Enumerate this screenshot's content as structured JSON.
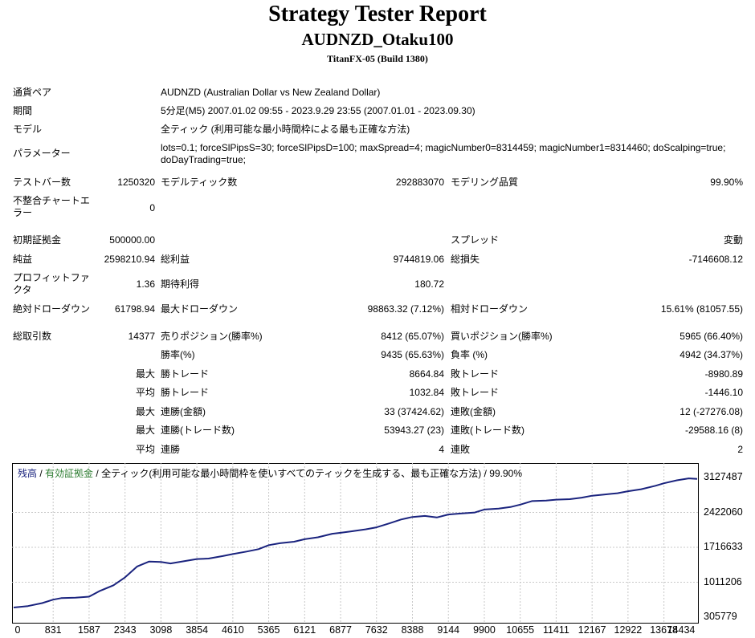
{
  "header": {
    "title": "Strategy Tester Report",
    "ea": "AUDNZD_Otaku100",
    "server": "TitanFX-05 (Build 1380)"
  },
  "settings": {
    "symbol_label": "通貨ペア",
    "symbol": "AUDNZD (Australian Dollar vs New Zealand Dollar)",
    "period_label": "期間",
    "period": "5分足(M5) 2007.01.02 09:55 - 2023.9.29 23:55 (2007.01.01 - 2023.09.30)",
    "model_label": "モデル",
    "model": "全ティック (利用可能な最小時間枠による最も正確な方法)",
    "params_label": "パラメーター",
    "params": "lots=0.1; forceSlPipsS=30; forceSlPipsD=100; maxSpread=4; magicNumber0=8314459; magicNumber1=8314460; doScalping=true; doDayTrading=true;"
  },
  "test": {
    "bars_label": "テストバー数",
    "bars": "1250320",
    "ticks_label": "モデルティック数",
    "ticks": "292883070",
    "quality_label": "モデリング品質",
    "quality": "99.90%",
    "mismatch_label": "不整合チャートエラー",
    "mismatch": "0"
  },
  "stats": {
    "deposit_label": "初期証拠金",
    "deposit": "500000.00",
    "spread_label": "スプレッド",
    "spread": "変動",
    "net_label": "純益",
    "net": "2598210.94",
    "gross_profit_label": "総利益",
    "gross_profit": "9744819.06",
    "gross_loss_label": "総損失",
    "gross_loss": "-7146608.12",
    "pf_label": "プロフィットファクタ",
    "pf": "1.36",
    "payoff_label": "期待利得",
    "payoff": "180.72",
    "abs_dd_label": "絶対ドローダウン",
    "abs_dd": "61798.94",
    "max_dd_label": "最大ドローダウン",
    "max_dd": "98863.32 (7.12%)",
    "rel_dd_label": "相対ドローダウン",
    "rel_dd": "15.61% (81057.55)"
  },
  "trades": {
    "total_label": "総取引数",
    "total": "14377",
    "short_label": "売りポジション(勝率%)",
    "short": "8412 (65.07%)",
    "long_label": "買いポジション(勝率%)",
    "long": "5965 (66.40%)",
    "win_label": "勝率(%)",
    "win": "9435 (65.63%)",
    "loss_label": "負率 (%)",
    "loss": "4942 (34.37%)",
    "max_label": "最大",
    "avg_label": "平均",
    "max_win_label": "勝トレード",
    "max_win": "8664.84",
    "max_loss_label": "敗トレード",
    "max_loss": "-8980.89",
    "avg_win_label": "勝トレード",
    "avg_win": "1032.84",
    "avg_loss_label": "敗トレード",
    "avg_loss": "-1446.10",
    "cons_wins_money_label": "連勝(金額)",
    "cons_wins_money": "33 (37424.62)",
    "cons_losses_money_label": "連敗(金額)",
    "cons_losses_money": "12 (-27276.08)",
    "cons_profit_label": "連勝(トレード数)",
    "cons_profit": "53943.27 (23)",
    "cons_loss_label": "連敗(トレード数)",
    "cons_loss": "-29588.16 (8)",
    "avg_cons_wins_label": "連勝",
    "avg_cons_wins": "4",
    "avg_cons_losses_label": "連敗",
    "avg_cons_losses": "2"
  },
  "chart_caption": {
    "balance": "残高",
    "sep1": " / ",
    "equity": "有効証拠金",
    "sep2": " / ",
    "rest": "全ティック(利用可能な最小時間枠を使いすべてのティックを生成する、最も正確な方法) / 99.90%"
  },
  "chart_data": {
    "type": "line",
    "x_ticks": [
      "0",
      "831",
      "1587",
      "2343",
      "3098",
      "3854",
      "4610",
      "5365",
      "6121",
      "6877",
      "7632",
      "8388",
      "9144",
      "9900",
      "10655",
      "11411",
      "12167",
      "12922",
      "13678",
      "14434"
    ],
    "y_ticks": [
      "3127487",
      "2422060",
      "1716633",
      "1011206",
      "305779"
    ],
    "ylim": [
      305779,
      3127487
    ],
    "xlim": [
      0,
      14377
    ],
    "grid": true,
    "colors": {
      "balance": "#1a237e",
      "equity": "#2e7d32"
    },
    "series": [
      {
        "name": "残高",
        "x": [
          0,
          300,
          600,
          831,
          1000,
          1300,
          1587,
          1800,
          2100,
          2343,
          2600,
          2850,
          3098,
          3300,
          3600,
          3854,
          4100,
          4400,
          4610,
          4900,
          5150,
          5365,
          5600,
          5900,
          6121,
          6400,
          6700,
          6877,
          7100,
          7400,
          7632,
          7900,
          8150,
          8388,
          8650,
          8900,
          9144,
          9400,
          9700,
          9900,
          10200,
          10450,
          10655,
          10900,
          11200,
          11411,
          11700,
          11950,
          12167,
          12400,
          12700,
          12922,
          13200,
          13500,
          13678,
          13950,
          14200,
          14377
        ],
        "y": [
          500000,
          530000,
          590000,
          660000,
          690000,
          700000,
          720000,
          830000,
          950000,
          1110000,
          1330000,
          1430000,
          1420000,
          1390000,
          1440000,
          1480000,
          1490000,
          1540000,
          1580000,
          1630000,
          1680000,
          1760000,
          1800000,
          1830000,
          1880000,
          1920000,
          1990000,
          2010000,
          2040000,
          2080000,
          2120000,
          2200000,
          2280000,
          2330000,
          2350000,
          2320000,
          2380000,
          2400000,
          2420000,
          2480000,
          2500000,
          2530000,
          2580000,
          2650000,
          2660000,
          2680000,
          2690000,
          2720000,
          2760000,
          2780000,
          2810000,
          2850000,
          2890000,
          2960000,
          3010000,
          3070000,
          3110000,
          3100000
        ]
      }
    ]
  }
}
